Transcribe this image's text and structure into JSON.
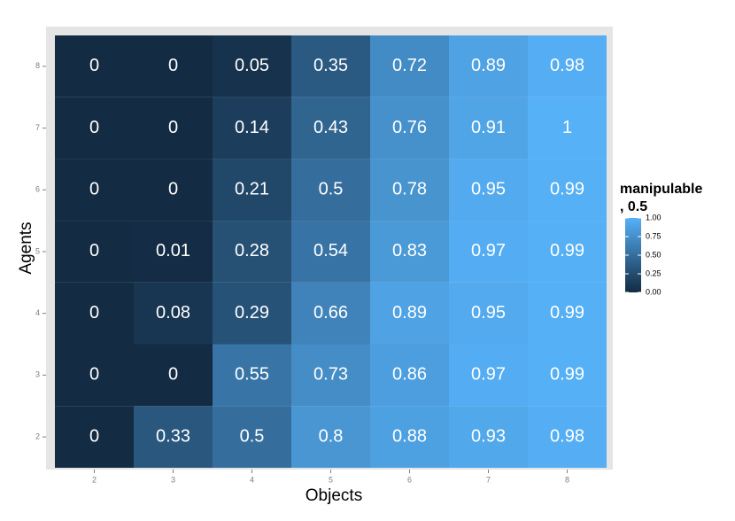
{
  "chart_data": {
    "type": "heatmap",
    "x_label": "Objects",
    "y_label": "Agents",
    "x_categories": [
      "2",
      "3",
      "4",
      "5",
      "6",
      "7",
      "8"
    ],
    "y_categories": [
      "2",
      "3",
      "4",
      "5",
      "6",
      "7",
      "8"
    ],
    "values": [
      [
        0,
        0.33,
        0.5,
        0.8,
        0.88,
        0.93,
        0.98
      ],
      [
        0,
        0,
        0.55,
        0.73,
        0.86,
        0.97,
        0.99
      ],
      [
        0,
        0.08,
        0.29,
        0.66,
        0.89,
        0.95,
        0.99
      ],
      [
        0,
        0.01,
        0.28,
        0.54,
        0.83,
        0.97,
        0.99
      ],
      [
        0,
        0,
        0.21,
        0.5,
        0.78,
        0.95,
        0.99
      ],
      [
        0,
        0,
        0.14,
        0.43,
        0.76,
        0.91,
        1
      ],
      [
        0,
        0,
        0.05,
        0.35,
        0.72,
        0.89,
        0.98
      ]
    ],
    "legend_title": [
      "manipulable",
      ", 0.5"
    ],
    "clim": [
      0,
      1
    ],
    "cticks": [
      {
        "value": 0,
        "label": "0.00"
      },
      {
        "value": 0.25,
        "label": "0.25"
      },
      {
        "value": 0.5,
        "label": "0.50"
      },
      {
        "value": 0.75,
        "label": "0.75"
      },
      {
        "value": 1,
        "label": "1.00"
      }
    ],
    "color_low": "#132b43",
    "color_high": "#56b1f7"
  }
}
